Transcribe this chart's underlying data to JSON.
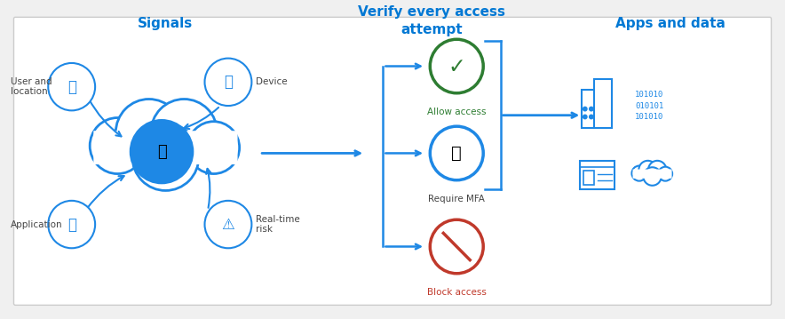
{
  "title_signals": "Signals",
  "title_verify": "Verify every access\nattempt",
  "title_apps": "Apps and data",
  "label_user": "User and\nlocation",
  "label_device": "Device",
  "label_application": "Application",
  "label_realtime": "Real-time\nrisk",
  "label_allow": "Allow access",
  "label_mfa": "Require MFA",
  "label_block": "Block access",
  "blue": "#1e88e5",
  "blue_dark": "#0078d4",
  "green": "#2e7d32",
  "orange_red": "#c0392b",
  "white": "#ffffff",
  "binary_text": "101010\n010101\n101010",
  "figsize": [
    8.84,
    3.59
  ],
  "dpi": 100
}
